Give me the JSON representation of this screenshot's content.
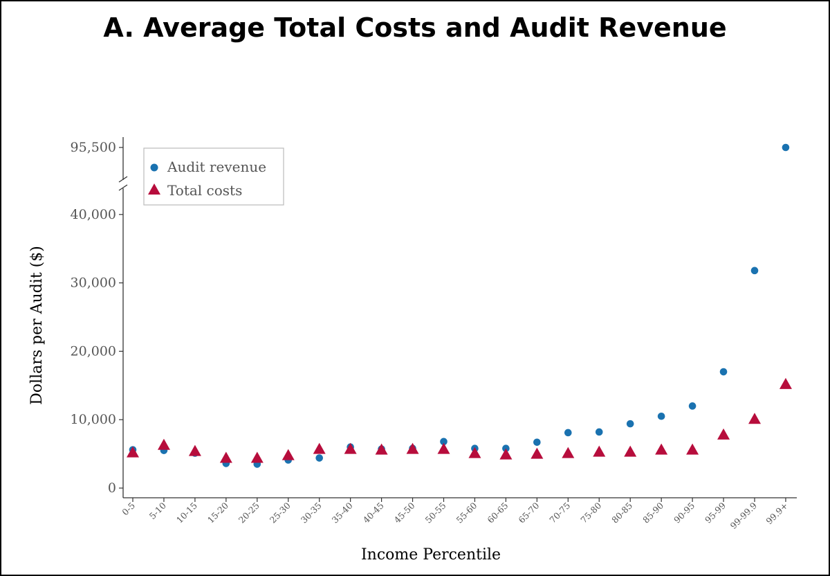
{
  "chart_data": {
    "type": "scatter",
    "title": "A. Average Total Costs and Audit Revenue",
    "xlabel": "Income Percentile",
    "ylabel": "Dollars per Audit ($)",
    "categories": [
      "0-5",
      "5-10",
      "10-15",
      "15-20",
      "20-25",
      "25-30",
      "30-35",
      "35-40",
      "40-45",
      "45-50",
      "50-55",
      "55-60",
      "60-65",
      "65-70",
      "70-75",
      "75-80",
      "80-85",
      "85-90",
      "90-95",
      "95-99",
      "99-99.9",
      "99.9+"
    ],
    "y_ticks": [
      0,
      10000,
      20000,
      30000,
      40000
    ],
    "y_tick_labels": [
      "0",
      "10,000",
      "20,000",
      "30,000",
      "40,000"
    ],
    "y_break_tick": 95500,
    "y_break_tick_label": "95,500",
    "ylim_lower": [
      0,
      40000
    ],
    "series": [
      {
        "name": "Audit revenue",
        "marker": "circle",
        "color": "#1a72b0",
        "values": [
          5600,
          5500,
          5100,
          3600,
          3500,
          4100,
          4400,
          6000,
          5700,
          5800,
          6800,
          5800,
          5800,
          6700,
          8100,
          8200,
          9400,
          10500,
          12000,
          17000,
          31800,
          95500
        ]
      },
      {
        "name": "Total costs",
        "marker": "triangle",
        "color": "#b70d3c",
        "values": [
          5200,
          6300,
          5400,
          4400,
          4400,
          4800,
          5700,
          5700,
          5600,
          5700,
          5700,
          5100,
          4900,
          5000,
          5100,
          5300,
          5300,
          5600,
          5600,
          7800,
          10100,
          15200
        ]
      }
    ],
    "legend_position": "top-left",
    "grid": false,
    "y_axis_break": true
  }
}
